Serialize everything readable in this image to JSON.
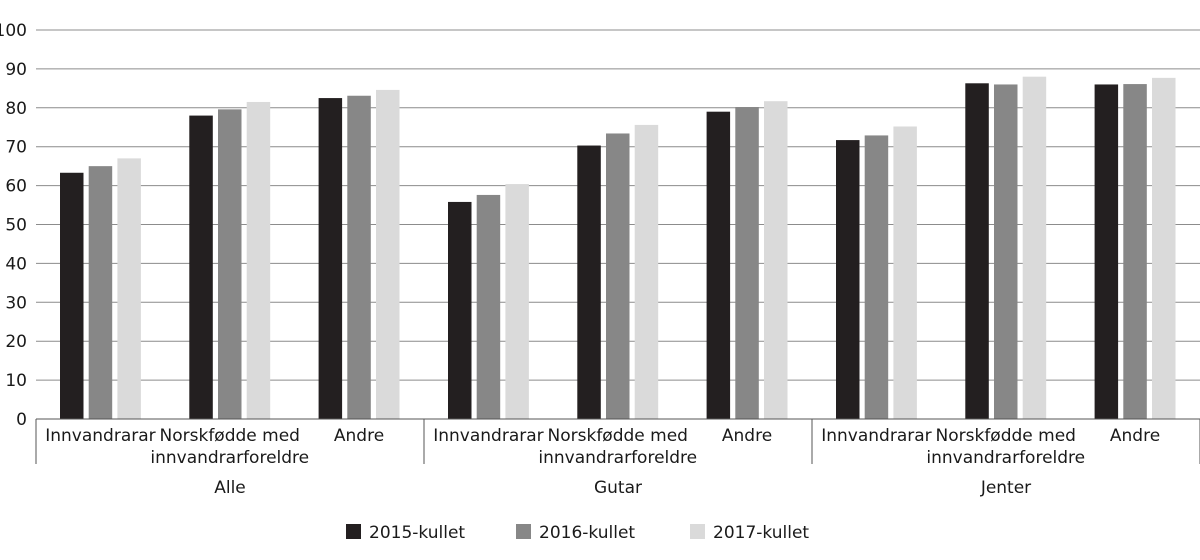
{
  "chart_data": {
    "type": "bar",
    "ylim": [
      0,
      100
    ],
    "yticks": [
      0,
      10,
      20,
      30,
      40,
      50,
      60,
      70,
      80,
      90,
      100
    ],
    "grid": "horizontal",
    "legend_position": "bottom",
    "groups": [
      {
        "label": "Alle",
        "categories": [
          [
            "Innvandrarar"
          ],
          [
            "Norskfødde med",
            "innvandrarforeldre"
          ],
          [
            "Andre"
          ]
        ]
      },
      {
        "label": "Gutar",
        "categories": [
          [
            "Innvandrarar"
          ],
          [
            "Norskfødde med",
            "innvandrarforeldre"
          ],
          [
            "Andre"
          ]
        ]
      },
      {
        "label": "Jenter",
        "categories": [
          [
            "Innvandrarar"
          ],
          [
            "Norskfødde med",
            "innvandrarforeldre"
          ],
          [
            "Andre"
          ]
        ]
      }
    ],
    "series": [
      {
        "name": "2015-kullet",
        "color": "#231f20",
        "values": [
          63.3,
          78.0,
          82.5,
          55.8,
          70.3,
          79.0,
          71.7,
          86.3,
          86.0
        ]
      },
      {
        "name": "2016-kullet",
        "color": "#878787",
        "values": [
          65.0,
          79.6,
          83.1,
          57.6,
          73.4,
          80.2,
          72.9,
          86.0,
          86.1
        ]
      },
      {
        "name": "2017-kullet",
        "color": "#dadada",
        "values": [
          67.0,
          81.5,
          84.6,
          60.4,
          75.6,
          81.7,
          75.2,
          88.0,
          87.7
        ]
      }
    ]
  }
}
